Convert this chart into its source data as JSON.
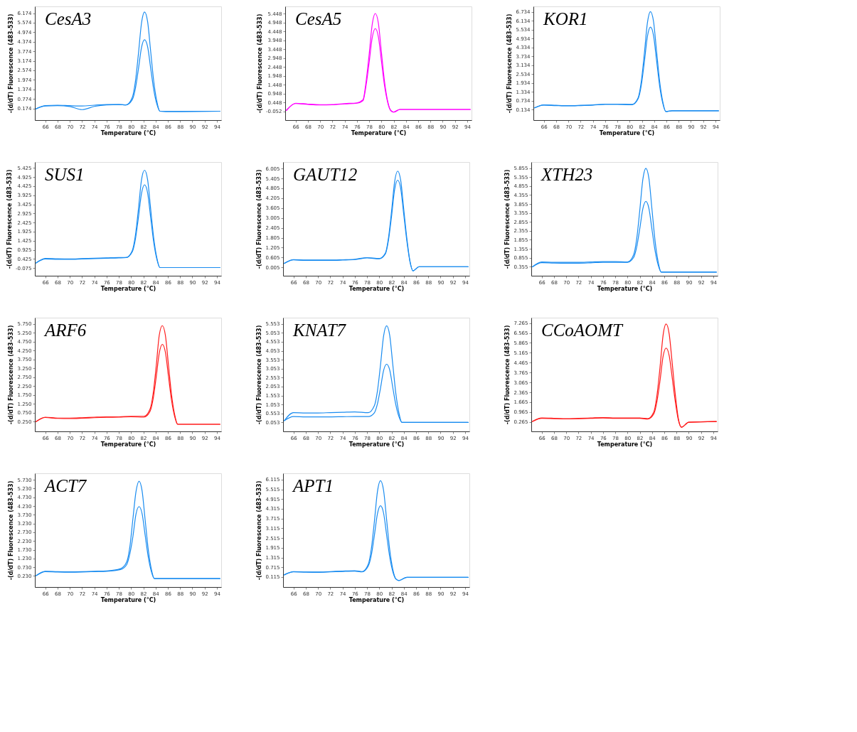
{
  "chart_data": [
    {
      "type": "line",
      "title": "CesA3",
      "xlabel": "Temperature (°C)",
      "ylabel": "-(d/dT) Fluorescence (483-533)",
      "xlim": [
        64.3,
        94.7
      ],
      "ylim": [
        -0.56,
        6.6
      ],
      "xticks": [
        66,
        68,
        70,
        72,
        74,
        76,
        78,
        80,
        82,
        84,
        86,
        88,
        90,
        92,
        94
      ],
      "yticks": [
        0.174,
        0.774,
        1.374,
        1.974,
        2.574,
        3.174,
        3.774,
        4.374,
        4.974,
        5.574,
        6.174
      ],
      "grid": false,
      "series": [
        {
          "color": "#1a8cf0",
          "x": [
            64.5,
            66,
            68,
            70,
            72,
            74,
            76,
            78,
            79.2,
            80.2,
            80.7,
            81.2,
            81.7,
            82.2,
            82.7,
            83.2,
            83.7,
            84.2,
            84.7,
            85.7,
            94.5
          ],
          "values": [
            0.15,
            0.35,
            0.38,
            0.35,
            0.33,
            0.38,
            0.42,
            0.42,
            0.4,
            0.87,
            1.86,
            3.62,
            5.55,
            6.25,
            5.63,
            3.75,
            1.88,
            0.63,
            0.0,
            -0.02,
            0.0
          ]
        },
        {
          "color": "#1a8cf0",
          "x": [
            64.5,
            66,
            68,
            70,
            72,
            74,
            76,
            78,
            79.2,
            80.2,
            80.7,
            81.2,
            81.7,
            82.2,
            82.7,
            83.2,
            83.7,
            84.2,
            84.7,
            85.7,
            94.5
          ],
          "values": [
            0.15,
            0.33,
            0.35,
            0.3,
            0.1,
            0.3,
            0.4,
            0.42,
            0.4,
            0.73,
            1.43,
            2.66,
            4.01,
            4.5,
            4.05,
            2.7,
            1.35,
            0.45,
            0.0,
            -0.02,
            0.0
          ]
        }
      ]
    },
    {
      "type": "line",
      "title": "CesA5",
      "xlabel": "Temperature (°C)",
      "ylabel": "-(d/dT) Fluorescence (483-533)",
      "xlim": [
        64.3,
        94.7
      ],
      "ylim": [
        -0.55,
        5.85
      ],
      "xticks": [
        66,
        68,
        70,
        72,
        74,
        76,
        78,
        80,
        82,
        84,
        86,
        88,
        90,
        92,
        94
      ],
      "yticks": [
        -0.052,
        0.448,
        0.948,
        1.448,
        1.948,
        2.448,
        2.948,
        3.448,
        3.948,
        4.448,
        4.948,
        5.448
      ],
      "grid": false,
      "series": [
        {
          "color": "#ff00ff",
          "x": [
            64.5,
            66,
            68,
            70,
            72,
            74,
            76,
            77,
            77.5,
            78,
            78.5,
            79,
            79.5,
            80,
            80.5,
            81,
            81.5,
            82,
            83,
            86,
            94.5
          ],
          "values": [
            0.0,
            0.4,
            0.35,
            0.32,
            0.33,
            0.38,
            0.42,
            0.6,
            1.63,
            3.16,
            4.84,
            5.45,
            4.91,
            3.27,
            1.64,
            0.55,
            0.0,
            -0.1,
            0.05,
            0.05,
            0.05
          ]
        },
        {
          "color": "#ff00ff",
          "x": [
            64.5,
            66,
            68,
            70,
            72,
            74,
            76,
            77,
            77.5,
            78,
            78.5,
            79,
            79.5,
            80,
            80.5,
            81,
            81.5,
            82,
            83,
            86,
            94.5
          ],
          "values": [
            0.0,
            0.38,
            0.33,
            0.3,
            0.31,
            0.36,
            0.4,
            0.55,
            1.41,
            2.69,
            4.09,
            4.6,
            4.14,
            2.77,
            1.4,
            0.48,
            0.0,
            -0.1,
            0.05,
            0.05,
            0.05
          ]
        }
      ]
    },
    {
      "type": "line",
      "title": "KOR1",
      "xlabel": "Temperature (°C)",
      "ylabel": "-(d/dT) Fluorescence (483-533)",
      "xlim": [
        64.3,
        94.7
      ],
      "ylim": [
        -0.58,
        7.1
      ],
      "xticks": [
        66,
        68,
        70,
        72,
        74,
        76,
        78,
        80,
        82,
        84,
        86,
        88,
        90,
        92,
        94
      ],
      "yticks": [
        0.134,
        0.734,
        1.334,
        1.934,
        2.534,
        3.134,
        3.734,
        4.334,
        4.934,
        5.534,
        6.134,
        6.734
      ],
      "grid": false,
      "series": [
        {
          "color": "#1a8cf0",
          "x": [
            64.5,
            66,
            68,
            70,
            72,
            74,
            76,
            78,
            80.4,
            81.4,
            81.9,
            82.4,
            82.9,
            83.4,
            83.9,
            84.4,
            84.9,
            85.4,
            85.9,
            86.9,
            94.5
          ],
          "values": [
            0.25,
            0.45,
            0.42,
            0.4,
            0.42,
            0.45,
            0.5,
            0.5,
            0.48,
            0.95,
            2.03,
            3.92,
            5.99,
            6.75,
            6.08,
            4.05,
            2.03,
            0.68,
            0.0,
            0.05,
            0.05
          ]
        },
        {
          "color": "#1a8cf0",
          "x": [
            64.5,
            66,
            68,
            70,
            72,
            74,
            76,
            78,
            80.4,
            81.4,
            81.9,
            82.4,
            82.9,
            83.4,
            83.9,
            84.4,
            84.9,
            85.4,
            85.9,
            86.9,
            94.5
          ],
          "values": [
            0.25,
            0.43,
            0.4,
            0.38,
            0.4,
            0.43,
            0.48,
            0.48,
            0.46,
            0.87,
            1.76,
            3.34,
            5.07,
            5.7,
            5.13,
            3.42,
            1.71,
            0.57,
            0.0,
            0.05,
            0.05
          ]
        }
      ]
    },
    {
      "type": "line",
      "title": "SUS1",
      "xlabel": "Temperature (°C)",
      "ylabel": "-(d/dT) Fluorescence (483-533)",
      "xlim": [
        64.3,
        94.7
      ],
      "ylim": [
        -0.5,
        5.75
      ],
      "xticks": [
        66,
        68,
        70,
        72,
        74,
        76,
        78,
        80,
        82,
        84,
        86,
        88,
        90,
        92,
        94
      ],
      "yticks": [
        -0.075,
        0.425,
        0.925,
        1.425,
        1.925,
        2.425,
        2.925,
        3.425,
        3.925,
        4.425,
        4.925,
        5.425
      ],
      "grid": false,
      "series": [
        {
          "color": "#1a8cf0",
          "x": [
            64.5,
            66,
            68,
            70,
            72,
            74,
            76,
            78,
            79.2,
            80.2,
            80.7,
            81.2,
            81.7,
            82.2,
            82.7,
            83.2,
            83.7,
            84.2,
            84.7,
            85.7,
            94.5
          ],
          "values": [
            0.2,
            0.45,
            0.43,
            0.42,
            0.44,
            0.46,
            0.48,
            0.5,
            0.5,
            0.89,
            1.71,
            3.17,
            4.77,
            5.3,
            4.77,
            3.16,
            1.56,
            0.49,
            -0.05,
            -0.05,
            -0.05
          ]
        },
        {
          "color": "#1a8cf0",
          "x": [
            64.5,
            66,
            68,
            70,
            72,
            74,
            76,
            78,
            79.2,
            80.2,
            80.7,
            81.2,
            81.7,
            82.2,
            82.7,
            83.2,
            83.7,
            84.2,
            84.7,
            85.7,
            94.5
          ],
          "values": [
            0.2,
            0.42,
            0.4,
            0.4,
            0.42,
            0.44,
            0.46,
            0.48,
            0.5,
            0.82,
            1.5,
            2.7,
            4.02,
            4.5,
            4.05,
            2.68,
            1.32,
            0.41,
            -0.05,
            -0.05,
            -0.05
          ]
        }
      ]
    },
    {
      "type": "line",
      "title": "GAUT12",
      "xlabel": "Temperature (°C)",
      "ylabel": "-(d/dT) Fluorescence (483-533)",
      "xlim": [
        64.3,
        94.7
      ],
      "ylim": [
        -0.5,
        6.4
      ],
      "xticks": [
        66,
        68,
        70,
        72,
        74,
        76,
        78,
        80,
        82,
        84,
        86,
        88,
        90,
        92,
        94
      ],
      "yticks": [
        0.005,
        0.605,
        1.205,
        1.805,
        2.405,
        3.005,
        3.605,
        4.205,
        4.805,
        5.405,
        6.005
      ],
      "grid": false,
      "series": [
        {
          "color": "#1a8cf0",
          "x": [
            64.5,
            66,
            68,
            70,
            72,
            74,
            76,
            78,
            80,
            81,
            81.5,
            82,
            82.5,
            83,
            83.5,
            84,
            84.5,
            85,
            85.5,
            86.5,
            94.5
          ],
          "values": [
            0.25,
            0.48,
            0.45,
            0.45,
            0.45,
            0.47,
            0.5,
            0.6,
            0.55,
            0.88,
            1.8,
            3.42,
            5.2,
            5.85,
            5.27,
            3.51,
            1.76,
            0.4,
            -0.2,
            0.05,
            0.05
          ]
        },
        {
          "color": "#1a8cf0",
          "x": [
            64.5,
            66,
            68,
            70,
            72,
            74,
            76,
            78,
            80,
            81,
            81.5,
            82,
            82.5,
            83,
            83.5,
            84,
            84.5,
            85,
            85.5,
            86.5,
            94.5
          ],
          "values": [
            0.25,
            0.46,
            0.43,
            0.43,
            0.43,
            0.45,
            0.48,
            0.58,
            0.53,
            0.83,
            1.66,
            3.1,
            4.72,
            5.3,
            4.77,
            3.18,
            1.59,
            0.36,
            -0.2,
            0.05,
            0.05
          ]
        }
      ]
    },
    {
      "type": "line",
      "title": "XTH23",
      "xlabel": "Temperature (°C)",
      "ylabel": "-(d/dT) Fluorescence (483-533)",
      "xlim": [
        64.3,
        94.7
      ],
      "ylim": [
        -0.15,
        6.2
      ],
      "xticks": [
        66,
        68,
        70,
        72,
        74,
        76,
        78,
        80,
        82,
        84,
        86,
        88,
        90,
        92,
        94
      ],
      "yticks": [
        0.355,
        0.855,
        1.355,
        1.855,
        2.355,
        2.855,
        3.355,
        3.855,
        4.355,
        4.855,
        5.355,
        5.855
      ],
      "grid": false,
      "series": [
        {
          "color": "#1a8cf0",
          "x": [
            64.5,
            66,
            68,
            70,
            72,
            74,
            76,
            78,
            80,
            81,
            81.5,
            82,
            82.5,
            83,
            83.5,
            84,
            84.5,
            85,
            85.5,
            86.5,
            94.5
          ],
          "values": [
            0.35,
            0.62,
            0.6,
            0.6,
            0.6,
            0.62,
            0.64,
            0.64,
            0.62,
            1.02,
            1.91,
            3.49,
            5.22,
            5.85,
            5.27,
            3.53,
            1.79,
            0.63,
            0.05,
            0.05,
            0.05
          ]
        },
        {
          "color": "#1a8cf0",
          "x": [
            64.5,
            66,
            68,
            70,
            72,
            74,
            76,
            78,
            80,
            81,
            81.5,
            82,
            82.5,
            83,
            83.5,
            84,
            84.5,
            85,
            85.5,
            86.5,
            94.5
          ],
          "values": [
            0.35,
            0.58,
            0.56,
            0.55,
            0.55,
            0.57,
            0.6,
            0.6,
            0.6,
            0.87,
            1.45,
            2.47,
            3.59,
            4.0,
            3.6,
            2.42,
            1.24,
            0.45,
            0.05,
            0.05,
            0.05
          ]
        }
      ]
    },
    {
      "type": "line",
      "title": "ARF6",
      "xlabel": "Temperature (°C)",
      "ylabel": "-(d/dT) Fluorescence (483-533)",
      "xlim": [
        64.3,
        94.7
      ],
      "ylim": [
        -0.3,
        6.1
      ],
      "xticks": [
        66,
        68,
        70,
        72,
        74,
        76,
        78,
        80,
        82,
        84,
        86,
        88,
        90,
        92,
        94
      ],
      "yticks": [
        {
          "value": 0.25,
          "label": "0.250"
        },
        {
          "value": 0.75,
          "label": "0.750"
        },
        {
          "value": 1.25,
          "label": "1.250"
        },
        {
          "value": 1.75,
          "label": "1.750"
        },
        {
          "value": 2.25,
          "label": "2.250"
        },
        {
          "value": 2.75,
          "label": "2.750"
        },
        {
          "value": 3.25,
          "label": "3.250"
        },
        {
          "value": 3.75,
          "label": "3.750"
        },
        {
          "value": 4.25,
          "label": "4.250"
        },
        {
          "value": 4.75,
          "label": "4.750"
        },
        {
          "value": 5.25,
          "label": "5.250"
        },
        {
          "value": 5.75,
          "label": "5.750"
        }
      ],
      "grid": false,
      "series": [
        {
          "color": "#ff1a1a",
          "x": [
            64.5,
            66,
            68,
            70,
            72,
            74,
            76,
            78,
            80,
            82.1,
            83.1,
            83.6,
            84.1,
            84.6,
            85.1,
            85.6,
            86.1,
            86.6,
            87.1,
            87.6,
            88.6,
            94.5
          ],
          "values": [
            0.25,
            0.5,
            0.45,
            0.45,
            0.47,
            0.5,
            0.52,
            0.52,
            0.55,
            0.55,
            0.96,
            1.83,
            3.37,
            5.12,
            5.65,
            5.1,
            3.43,
            1.77,
            0.66,
            0.1,
            0.1,
            0.1
          ]
        },
        {
          "color": "#ff1a1a",
          "x": [
            64.5,
            66,
            68,
            70,
            72,
            74,
            76,
            78,
            80,
            82.1,
            83.1,
            83.6,
            84.1,
            84.6,
            85.1,
            85.6,
            86.1,
            86.6,
            87.1,
            87.6,
            88.6,
            94.5
          ],
          "values": [
            0.25,
            0.48,
            0.43,
            0.42,
            0.44,
            0.47,
            0.49,
            0.5,
            0.52,
            0.5,
            0.83,
            1.53,
            2.76,
            4.11,
            4.6,
            4.15,
            2.8,
            1.45,
            0.55,
            0.1,
            0.1,
            0.1
          ]
        }
      ]
    },
    {
      "type": "line",
      "title": "KNAT7",
      "xlabel": "Temperature (°C)",
      "ylabel": "-(d/dT) Fluorescence (483-533)",
      "xlim": [
        64.3,
        94.7
      ],
      "ylim": [
        -0.45,
        5.9
      ],
      "xticks": [
        66,
        68,
        70,
        72,
        74,
        76,
        78,
        80,
        82,
        84,
        86,
        88,
        90,
        92,
        94
      ],
      "yticks": [
        0.053,
        0.553,
        1.053,
        1.553,
        2.053,
        2.553,
        3.053,
        3.553,
        4.053,
        4.553,
        5.053,
        5.553
      ],
      "grid": false,
      "series": [
        {
          "color": "#1a8cf0",
          "x": [
            64.5,
            66,
            68,
            70,
            72,
            74,
            76,
            78.2,
            79.2,
            79.7,
            80.2,
            80.7,
            81.2,
            81.7,
            82.2,
            82.7,
            83.2,
            83.7,
            84.7,
            94.5
          ],
          "values": [
            0.15,
            0.6,
            0.58,
            0.58,
            0.6,
            0.62,
            0.64,
            0.6,
            0.99,
            1.81,
            3.27,
            4.87,
            5.45,
            4.91,
            3.29,
            1.67,
            0.59,
            0.05,
            0.05,
            0.05
          ]
        },
        {
          "color": "#1a8cf0",
          "x": [
            64.5,
            66,
            68,
            70,
            72,
            74,
            76,
            78.2,
            79.2,
            79.7,
            80.2,
            80.7,
            81.2,
            81.7,
            82.2,
            82.7,
            83.2,
            83.7,
            84.7,
            94.5
          ],
          "values": [
            0.15,
            0.38,
            0.36,
            0.36,
            0.36,
            0.37,
            0.38,
            0.38,
            0.59,
            1.09,
            1.97,
            2.95,
            3.3,
            2.98,
            2.0,
            1.03,
            0.38,
            0.05,
            0.05,
            0.05
          ]
        }
      ]
    },
    {
      "type": "line",
      "title": "CCoAOMT",
      "xlabel": "Temperature (°C)",
      "ylabel": "-(d/dT) Fluorescence (483-533)",
      "xlim": [
        64.3,
        94.7
      ],
      "ylim": [
        -0.4,
        7.65
      ],
      "xticks": [
        66,
        68,
        70,
        72,
        74,
        76,
        78,
        80,
        82,
        84,
        86,
        88,
        90,
        92,
        94
      ],
      "yticks": [
        0.265,
        0.965,
        1.665,
        2.365,
        3.065,
        3.765,
        4.465,
        5.165,
        5.865,
        6.565,
        7.265
      ],
      "grid": false,
      "series": [
        {
          "color": "#ff1a1a",
          "x": [
            64.5,
            66,
            68,
            70,
            72,
            74,
            76,
            78,
            80,
            82,
            83.3,
            84.3,
            84.8,
            85.3,
            85.8,
            86.3,
            86.8,
            87.3,
            87.8,
            88.3,
            88.8,
            90,
            94.5
          ],
          "values": [
            0.3,
            0.55,
            0.53,
            0.5,
            0.52,
            0.55,
            0.58,
            0.55,
            0.55,
            0.55,
            0.5,
            0.99,
            2.14,
            4.11,
            6.39,
            7.2,
            6.5,
            4.4,
            2.2,
            0.5,
            -0.1,
            0.25,
            0.3
          ]
        },
        {
          "color": "#ff1a1a",
          "x": [
            64.5,
            66,
            68,
            70,
            72,
            74,
            76,
            78,
            80,
            82,
            83.3,
            84.3,
            84.8,
            85.3,
            85.8,
            86.3,
            86.8,
            87.3,
            87.8,
            88.3,
            88.8,
            90,
            94.5
          ],
          "values": [
            0.3,
            0.52,
            0.5,
            0.48,
            0.5,
            0.52,
            0.55,
            0.52,
            0.52,
            0.52,
            0.47,
            0.85,
            1.71,
            3.17,
            4.9,
            5.5,
            4.97,
            3.38,
            1.7,
            0.4,
            -0.1,
            0.25,
            0.3
          ]
        }
      ]
    },
    {
      "type": "line",
      "title": "ACT7",
      "xlabel": "Temperature (°C)",
      "ylabel": "-(d/dT) Fluorescence (483-533)",
      "xlim": [
        64.3,
        94.7
      ],
      "ylim": [
        -0.4,
        6.1
      ],
      "xticks": [
        66,
        68,
        70,
        72,
        74,
        76,
        78,
        80,
        82,
        84,
        86,
        88,
        90,
        92,
        94
      ],
      "yticks": [
        {
          "value": 0.23,
          "label": "0.230"
        },
        {
          "value": 0.73,
          "label": "0.730"
        },
        {
          "value": 1.23,
          "label": "1.230"
        },
        {
          "value": 1.73,
          "label": "1.730"
        },
        {
          "value": 2.23,
          "label": "2.230"
        },
        {
          "value": 2.73,
          "label": "2.730"
        },
        {
          "value": 3.23,
          "label": "3.230"
        },
        {
          "value": 3.73,
          "label": "3.730"
        },
        {
          "value": 4.23,
          "label": "4.230"
        },
        {
          "value": 4.73,
          "label": "4.730"
        },
        {
          "value": 5.23,
          "label": "5.230"
        },
        {
          "value": 5.73,
          "label": "5.730"
        }
      ],
      "grid": false,
      "series": [
        {
          "color": "#1a8cf0",
          "x": [
            64.5,
            66,
            68,
            70,
            72,
            74,
            76,
            78.3,
            79.3,
            79.8,
            80.3,
            80.8,
            81.3,
            81.8,
            82.3,
            82.8,
            83.3,
            83.8,
            84.8,
            94.5
          ],
          "values": [
            0.25,
            0.5,
            0.48,
            0.47,
            0.48,
            0.5,
            0.52,
            0.65,
            1.05,
            1.9,
            3.5,
            5.05,
            5.65,
            5.09,
            3.42,
            1.75,
            0.64,
            0.08,
            0.08,
            0.08
          ]
        },
        {
          "color": "#1a8cf0",
          "x": [
            64.5,
            66,
            68,
            70,
            72,
            74,
            76,
            78.3,
            79.3,
            79.8,
            80.3,
            80.8,
            81.3,
            81.8,
            82.3,
            82.8,
            83.3,
            83.8,
            84.8,
            94.5
          ],
          "values": [
            0.25,
            0.48,
            0.46,
            0.45,
            0.46,
            0.48,
            0.5,
            0.6,
            0.89,
            1.5,
            2.49,
            3.77,
            4.2,
            3.79,
            2.55,
            1.32,
            0.49,
            0.08,
            0.08,
            0.08
          ]
        }
      ]
    },
    {
      "type": "line",
      "title": "APT1",
      "xlabel": "Temperature (°C)",
      "ylabel": "-(d/dT) Fluorescence (483-533)",
      "xlim": [
        64.3,
        94.7
      ],
      "ylim": [
        -0.5,
        6.5
      ],
      "xticks": [
        66,
        68,
        70,
        72,
        74,
        76,
        78,
        80,
        82,
        84,
        86,
        88,
        90,
        92,
        94
      ],
      "yticks": [
        0.115,
        0.715,
        1.315,
        1.915,
        2.515,
        3.115,
        3.715,
        4.315,
        4.915,
        5.515,
        6.115
      ],
      "grid": false,
      "series": [
        {
          "color": "#1a8cf0",
          "x": [
            64.5,
            66,
            68,
            70,
            72,
            74,
            76,
            77.2,
            78.2,
            78.7,
            79.2,
            79.7,
            80.2,
            80.7,
            81.2,
            81.7,
            82.2,
            82.7,
            83.2,
            84.5,
            94.5
          ],
          "values": [
            0.25,
            0.45,
            0.43,
            0.42,
            0.45,
            0.48,
            0.5,
            0.45,
            0.9,
            1.85,
            3.53,
            5.38,
            6.05,
            5.45,
            3.63,
            1.8,
            0.6,
            0.0,
            -0.1,
            0.1,
            0.1
          ]
        },
        {
          "color": "#1a8cf0",
          "x": [
            64.5,
            66,
            68,
            70,
            72,
            74,
            76,
            77.2,
            78.2,
            78.7,
            79.2,
            79.7,
            80.2,
            80.7,
            81.2,
            81.7,
            82.2,
            82.7,
            83.2,
            84.5,
            94.5
          ],
          "values": [
            0.25,
            0.43,
            0.41,
            0.4,
            0.43,
            0.46,
            0.48,
            0.43,
            0.79,
            1.46,
            2.68,
            4.01,
            4.5,
            4.05,
            2.7,
            1.35,
            0.45,
            0.0,
            -0.1,
            0.1,
            0.1
          ]
        }
      ]
    }
  ]
}
